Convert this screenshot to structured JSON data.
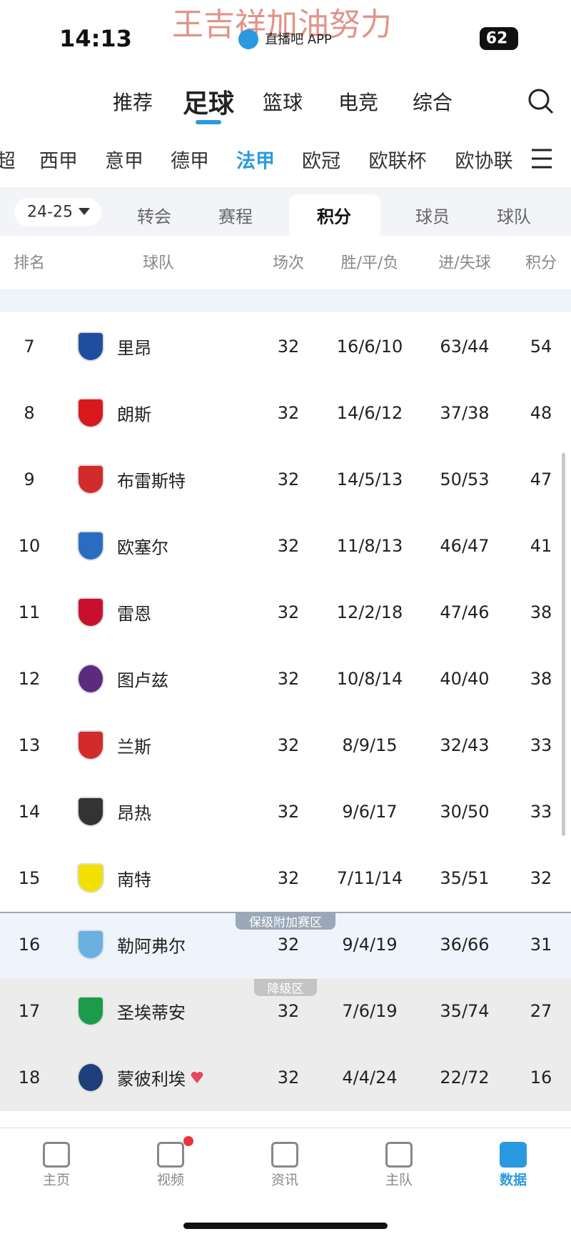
{
  "watermark": "王吉祥加油努力",
  "status_bar": {
    "time": "14:13",
    "app": "直播吧 APP",
    "battery": "62"
  },
  "top_tabs": [
    "推荐",
    "足球",
    "篮球",
    "电竞",
    "综合"
  ],
  "league_tabs": [
    "超",
    "西甲",
    "意甲",
    "德甲",
    "法甲",
    "欧冠",
    "欧联杯",
    "欧协联"
  ],
  "season": "24-25",
  "sub_tabs": [
    "转会",
    "赛程",
    "积分",
    "球员",
    "球队"
  ],
  "table": {
    "headers": [
      "排名",
      "球队",
      "场次",
      "胜/平/负",
      "进/失球",
      "积分"
    ],
    "rows": [
      [
        7,
        "里昂",
        32,
        "16/6/10",
        "63/44",
        54
      ],
      [
        8,
        "朗斯",
        32,
        "14/6/12",
        "37/38",
        48
      ],
      [
        9,
        "布雷斯特",
        32,
        "14/5/13",
        "50/53",
        47
      ],
      [
        10,
        "欧塞尔",
        32,
        "11/8/13",
        "46/47",
        41
      ],
      [
        11,
        "雷恩",
        32,
        "12/2/18",
        "47/46",
        38
      ],
      [
        12,
        "图卢兹",
        32,
        "10/8/14",
        "40/40",
        38
      ],
      [
        13,
        "兰斯",
        32,
        "8/9/15",
        "32/43",
        33
      ],
      [
        14,
        "昂热",
        32,
        "9/6/17",
        "30/50",
        33
      ],
      [
        15,
        "南特",
        32,
        "7/11/14",
        "35/51",
        32
      ],
      [
        16,
        "勒阿弗尔",
        32,
        "9/4/19",
        "36/66",
        31
      ],
      [
        17,
        "圣埃蒂安",
        32,
        "7/6/19",
        "35/74",
        27
      ],
      [
        18,
        "蒙彼利埃",
        32,
        "4/4/24",
        "22/72",
        16
      ]
    ],
    "zones": [
      "保级附加赛区",
      "降级区"
    ]
  },
  "bottom_nav": [
    "主页",
    "视频",
    "资讯",
    "主队",
    "数据"
  ]
}
